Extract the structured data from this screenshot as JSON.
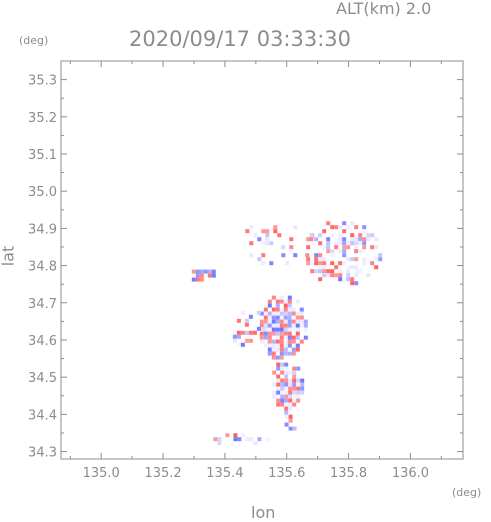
{
  "header": {
    "altitude_label": "ALT(km) 2.0",
    "datetime": "2020/09/17 03:33:30"
  },
  "chart_data": {
    "type": "heatmap",
    "title": "2020/09/17 03:33:30",
    "xlabel": "lon",
    "ylabel": "lat",
    "x_unit": "(deg)",
    "y_unit": "(deg)",
    "xlim": [
      134.87,
      136.17
    ],
    "ylim": [
      34.28,
      35.35
    ],
    "x_ticks": [
      "135.0",
      "135.2",
      "135.4",
      "135.6",
      "135.8",
      "136.0"
    ],
    "y_ticks": [
      "34.3",
      "34.4",
      "34.5",
      "34.6",
      "34.7",
      "34.8",
      "34.9",
      "35.0",
      "35.1",
      "35.2",
      "35.3"
    ],
    "grid": false,
    "colors": {
      "positive": "#ff6b6b",
      "negative": "#6b78ff",
      "neutral": "#d8d8f5"
    },
    "blobs": [
      {
        "region": "central-body",
        "lon": [
          135.5,
          135.66
        ],
        "lat": [
          34.55,
          34.73
        ],
        "density": 0.95
      },
      {
        "region": "southern-tail",
        "lon": [
          135.54,
          135.65
        ],
        "lat": [
          34.41,
          34.55
        ],
        "density": 0.85
      },
      {
        "region": "southern-tip",
        "lon": [
          135.58,
          135.63
        ],
        "lat": [
          34.36,
          34.41
        ],
        "density": 0.6
      },
      {
        "region": "west-cluster",
        "lon": [
          135.28,
          135.38
        ],
        "lat": [
          34.76,
          34.8
        ],
        "density": 0.8
      },
      {
        "region": "south-west-strip",
        "lon": [
          135.35,
          135.55
        ],
        "lat": [
          34.32,
          34.36
        ],
        "density": 0.45
      },
      {
        "region": "north-east-arc",
        "lon": [
          135.65,
          135.9
        ],
        "lat": [
          34.75,
          34.93
        ],
        "density": 0.5
      },
      {
        "region": "north-ring",
        "lon": [
          135.44,
          135.68
        ],
        "lat": [
          34.8,
          34.93
        ],
        "density": 0.25
      },
      {
        "region": "west-scatter",
        "lon": [
          135.4,
          135.52
        ],
        "lat": [
          34.58,
          34.7
        ],
        "density": 0.3
      }
    ]
  }
}
